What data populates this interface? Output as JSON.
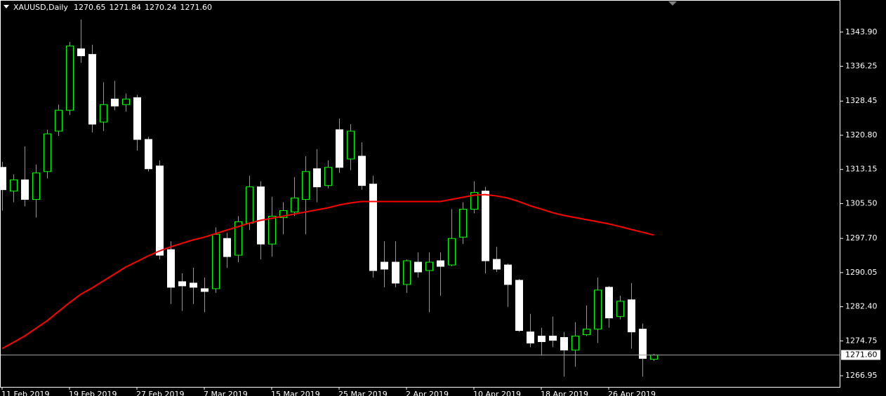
{
  "chart_data": {
    "type": "candlestick",
    "header": {
      "symbol": "XAUUSD,Daily",
      "ohlc": [
        "1270.65",
        "1271.84",
        "1270.24",
        "1271.60"
      ]
    },
    "categories": [
      "11 Feb 2019",
      null,
      null,
      null,
      null,
      null,
      "19 Feb 2019",
      null,
      null,
      null,
      null,
      null,
      "27 Feb 2019",
      null,
      null,
      null,
      null,
      null,
      "7 Mar 2019",
      null,
      null,
      null,
      null,
      null,
      "15 Mar 2019",
      null,
      null,
      null,
      null,
      null,
      "25 Mar 2019",
      null,
      null,
      null,
      null,
      null,
      "2 Apr 2019",
      null,
      null,
      null,
      null,
      null,
      "10 Apr 2019",
      null,
      null,
      null,
      null,
      null,
      "18 Apr 2019",
      null,
      null,
      null,
      null,
      null,
      "26 Apr 2019",
      null,
      null,
      null,
      null
    ],
    "open": [
      1313.61,
      1308.3,
      1310.8,
      1306.43,
      1312.67,
      1321.73,
      1326.41,
      1340.15,
      1338.9,
      1323.76,
      1328.91,
      1327.66,
      1329.22,
      1319.86,
      1313.92,
      1295.19,
      1288.01,
      1287.69,
      1286.44,
      1286.44,
      1297.69,
      1293.94,
      1301.12,
      1309.24,
      1296.44,
      1302.37,
      1303.62,
      1306.43,
      1313.3,
      1309.55,
      1322.04,
      1315.48,
      1316.11,
      1309.86,
      1292.38,
      1292.38,
      1287.38,
      1292.38,
      1290.5,
      1292.69,
      1291.75,
      1297.99,
      1304.24,
      1308.3,
      1293.0,
      1291.75,
      1288.32,
      1276.76,
      1275.83,
      1275.83,
      1275.52,
      1272.71,
      1276.14,
      1277.39,
      1286.76,
      1280.2,
      1283.95,
      1277.39,
      1270.65
    ],
    "high": [
      1314.86,
      1312.05,
      1318.3,
      1314.24,
      1322.04,
      1327.66,
      1341.71,
      1346.71,
      1341.09,
      1332.66,
      1332.97,
      1330.16,
      1329.85,
      1320.48,
      1315.17,
      1297.06,
      1289.88,
      1291.13,
      1288.94,
      1300.18,
      1298.93,
      1302.68,
      1311.74,
      1310.49,
      1307.05,
      1305.8,
      1311.42,
      1316.11,
      1317.67,
      1315.17,
      1324.54,
      1323.29,
      1319.23,
      1311.74,
      1297.06,
      1297.06,
      1293.0,
      1294.56,
      1294.56,
      1294.56,
      1304.24,
      1305.8,
      1310.49,
      1309.24,
      1295.81,
      1292.07,
      1288.63,
      1280.82,
      1277.7,
      1280.2,
      1276.76,
      1278.95,
      1282.7,
      1288.94,
      1287.07,
      1284.88,
      1287.69,
      1278.64,
      1271.84
    ],
    "low": [
      1303.93,
      1305.8,
      1304.87,
      1302.37,
      1311.11,
      1320.64,
      1325.32,
      1337.03,
      1321.42,
      1321.73,
      1326.41,
      1326.1,
      1317.36,
      1312.67,
      1293.0,
      1283.01,
      1281.45,
      1283.01,
      1281.14,
      1285.51,
      1291.13,
      1292.38,
      1299.56,
      1293.0,
      1293.63,
      1298.62,
      1302.68,
      1298.62,
      1305.8,
      1308.93,
      1312.36,
      1312.99,
      1308.61,
      1288.94,
      1286.76,
      1286.76,
      1285.51,
      1288.94,
      1281.14,
      1284.88,
      1291.44,
      1296.44,
      1303.31,
      1289.88,
      1290.19,
      1282.39,
      1276.76,
      1273.33,
      1271.46,
      1273.33,
      1266.77,
      1268.96,
      1275.83,
      1274.27,
      1277.7,
      1279.57,
      1273.02,
      1266.77,
      1270.24
    ],
    "close": [
      1308.61,
      1310.8,
      1306.43,
      1312.36,
      1321.11,
      1326.41,
      1340.78,
      1338.59,
      1323.29,
      1327.66,
      1327.35,
      1328.91,
      1319.86,
      1313.3,
      1293.94,
      1286.76,
      1287.07,
      1286.76,
      1285.82,
      1298.62,
      1293.63,
      1301.43,
      1309.24,
      1296.44,
      1302.68,
      1303.93,
      1306.74,
      1312.67,
      1309.24,
      1313.61,
      1313.61,
      1321.73,
      1309.55,
      1290.5,
      1290.82,
      1287.69,
      1292.69,
      1290.19,
      1292.38,
      1291.44,
      1297.69,
      1304.24,
      1307.99,
      1292.69,
      1290.82,
      1287.38,
      1277.08,
      1274.27,
      1274.58,
      1274.89,
      1272.71,
      1275.83,
      1277.39,
      1286.13,
      1279.89,
      1283.63,
      1276.76,
      1270.83,
      1271.6
    ],
    "up_color": "#00ff00",
    "down_color": "#ffffff",
    "overlay": {
      "color": "#ff0000",
      "values": [
        1273.02,
        1274.42,
        1275.83,
        1277.55,
        1279.26,
        1281.29,
        1283.32,
        1285.2,
        1286.6,
        1288.16,
        1289.72,
        1291.29,
        1292.53,
        1293.78,
        1294.88,
        1295.81,
        1296.59,
        1297.37,
        1297.99,
        1298.77,
        1299.56,
        1300.34,
        1301.12,
        1301.74,
        1302.21,
        1302.68,
        1303.15,
        1303.62,
        1304.09,
        1304.55,
        1305.18,
        1305.65,
        1305.96,
        1305.96,
        1305.96,
        1305.96,
        1305.96,
        1305.96,
        1305.96,
        1305.96,
        1306.43,
        1306.9,
        1307.37,
        1307.52,
        1307.21,
        1306.74,
        1305.96,
        1305.02,
        1304.24,
        1303.46,
        1302.84,
        1302.37,
        1301.9,
        1301.43,
        1300.96,
        1300.34,
        1299.71,
        1299.09,
        1298.46
      ]
    },
    "last_price": {
      "value": 1271.6,
      "label": "1271.60"
    },
    "ylim": [
      1264.45,
      1350.93
    ],
    "yticks": [
      {
        "value": 1343.9,
        "label": "1343.90"
      },
      {
        "value": 1336.25,
        "label": "1336.25"
      },
      {
        "value": 1328.45,
        "label": "1328.45"
      },
      {
        "value": 1320.8,
        "label": "1320.80"
      },
      {
        "value": 1313.15,
        "label": "1313.15"
      },
      {
        "value": 1305.5,
        "label": "1305.50"
      },
      {
        "value": 1297.7,
        "label": "1297.70"
      },
      {
        "value": 1290.05,
        "label": "1290.05"
      },
      {
        "value": 1282.4,
        "label": "1282.40"
      },
      {
        "value": 1274.75,
        "label": "1274.75"
      },
      {
        "value": 1266.95,
        "label": "1266.95"
      }
    ]
  }
}
